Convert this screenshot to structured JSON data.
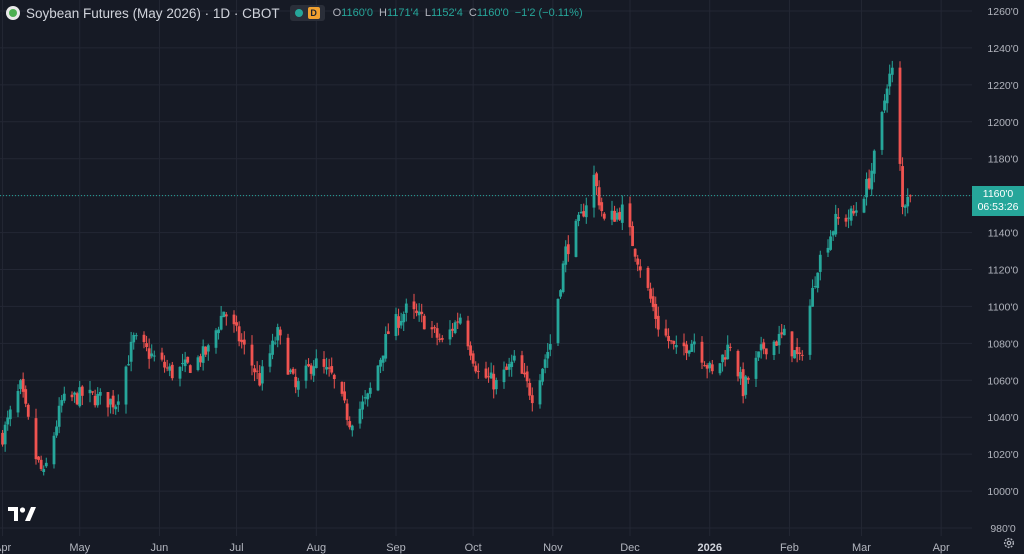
{
  "header": {
    "symbol_title": "Soybean Futures (May 2026) · 1D · CBOT",
    "interval_badge": "D",
    "ohlc": {
      "open_label": "O",
      "open": "1160'0",
      "high_label": "H",
      "high": "1171'4",
      "low_label": "L",
      "low": "1152'4",
      "close_label": "C",
      "close": "1160'0",
      "change": "−1'2 (−0.11%)"
    }
  },
  "last_price": {
    "price": "1160'0",
    "countdown": "06:53:26"
  },
  "colors": {
    "up": "#26a69a",
    "down": "#ef5350",
    "background": "#161a25",
    "grid": "#232734",
    "axis_text": "#b2b5be"
  },
  "icons": {
    "logo": "tradingview-logo-icon",
    "settings": "gear-icon",
    "symbol": "soybean-icon"
  },
  "chart_data": {
    "type": "candlestick",
    "y_unit": "cents per bushel",
    "ylim": [
      980,
      1260
    ],
    "xlim": [
      "2025-03-31",
      "2026-04-13"
    ],
    "grid": true,
    "last_price": 1160,
    "y_ticks": [
      {
        "value": 1260,
        "label": "1260'0"
      },
      {
        "value": 1240,
        "label": "1240'0"
      },
      {
        "value": 1220,
        "label": "1220'0"
      },
      {
        "value": 1200,
        "label": "1200'0"
      },
      {
        "value": 1180,
        "label": "1180'0"
      },
      {
        "value": 1160,
        "label": "1160'0"
      },
      {
        "value": 1140,
        "label": "1140'0"
      },
      {
        "value": 1120,
        "label": "1120'0"
      },
      {
        "value": 1100,
        "label": "1100'0"
      },
      {
        "value": 1080,
        "label": "1080'0"
      },
      {
        "value": 1060,
        "label": "1060'0"
      },
      {
        "value": 1040,
        "label": "1040'0"
      },
      {
        "value": 1020,
        "label": "1020'0"
      },
      {
        "value": 1000,
        "label": "1000'0"
      },
      {
        "value": 980,
        "label": "980'0"
      }
    ],
    "x_ticks": [
      {
        "date": "2025-04-01",
        "label": "Apr",
        "bold": false
      },
      {
        "date": "2025-05-01",
        "label": "May",
        "bold": false
      },
      {
        "date": "2025-06-01",
        "label": "Jun",
        "bold": false
      },
      {
        "date": "2025-07-01",
        "label": "Jul",
        "bold": false
      },
      {
        "date": "2025-08-01",
        "label": "Aug",
        "bold": false
      },
      {
        "date": "2025-09-01",
        "label": "Sep",
        "bold": false
      },
      {
        "date": "2025-10-01",
        "label": "Oct",
        "bold": false
      },
      {
        "date": "2025-11-01",
        "label": "Nov",
        "bold": false
      },
      {
        "date": "2025-12-01",
        "label": "Dec",
        "bold": false
      },
      {
        "date": "2026-01-01",
        "label": "2026",
        "bold": true
      },
      {
        "date": "2026-02-01",
        "label": "Feb",
        "bold": false
      },
      {
        "date": "2026-03-01",
        "label": "Mar",
        "bold": false
      },
      {
        "date": "2026-04-01",
        "label": "Apr",
        "bold": false
      }
    ],
    "waypoints": [
      [
        "2025-04-01",
        1030
      ],
      [
        "2025-04-08",
        1056
      ],
      [
        "2025-04-14",
        1018
      ],
      [
        "2025-04-17",
        1008
      ],
      [
        "2025-04-24",
        1048
      ],
      [
        "2025-05-02",
        1052
      ],
      [
        "2025-05-09",
        1050
      ],
      [
        "2025-05-15",
        1048
      ],
      [
        "2025-05-22",
        1082
      ],
      [
        "2025-05-30",
        1072
      ],
      [
        "2025-06-06",
        1064
      ],
      [
        "2025-06-13",
        1068
      ],
      [
        "2025-06-20",
        1076
      ],
      [
        "2025-06-26",
        1098
      ],
      [
        "2025-07-03",
        1080
      ],
      [
        "2025-07-10",
        1060
      ],
      [
        "2025-07-17",
        1085
      ],
      [
        "2025-07-24",
        1055
      ],
      [
        "2025-07-31",
        1070
      ],
      [
        "2025-08-07",
        1062
      ],
      [
        "2025-08-14",
        1038
      ],
      [
        "2025-08-21",
        1050
      ],
      [
        "2025-08-29",
        1086
      ],
      [
        "2025-09-05",
        1098
      ],
      [
        "2025-09-12",
        1092
      ],
      [
        "2025-09-19",
        1080
      ],
      [
        "2025-09-26",
        1095
      ],
      [
        "2025-10-03",
        1064
      ],
      [
        "2025-10-10",
        1058
      ],
      [
        "2025-10-17",
        1070
      ],
      [
        "2025-10-24",
        1052
      ],
      [
        "2025-10-31",
        1080
      ],
      [
        "2025-11-06",
        1130
      ],
      [
        "2025-11-12",
        1148
      ],
      [
        "2025-11-17",
        1170
      ],
      [
        "2025-11-21",
        1146
      ],
      [
        "2025-11-28",
        1152
      ],
      [
        "2025-12-05",
        1122
      ],
      [
        "2025-12-12",
        1090
      ],
      [
        "2025-12-19",
        1075
      ],
      [
        "2025-12-26",
        1082
      ],
      [
        "2026-01-02",
        1063
      ],
      [
        "2026-01-09",
        1080
      ],
      [
        "2026-01-14",
        1055
      ],
      [
        "2026-01-22",
        1078
      ],
      [
        "2026-01-30",
        1084
      ],
      [
        "2026-02-05",
        1070
      ],
      [
        "2026-02-12",
        1123
      ],
      [
        "2026-02-19",
        1146
      ],
      [
        "2026-02-26",
        1150
      ],
      [
        "2026-03-04",
        1168
      ],
      [
        "2026-03-08",
        1192
      ],
      [
        "2026-03-11",
        1222
      ],
      [
        "2026-03-13",
        1227
      ],
      [
        "2026-03-16",
        1175
      ],
      [
        "2026-03-17",
        1153
      ],
      [
        "2026-03-19",
        1162
      ],
      [
        "2026-03-20",
        1160
      ]
    ],
    "candle_volatility": 6
  }
}
